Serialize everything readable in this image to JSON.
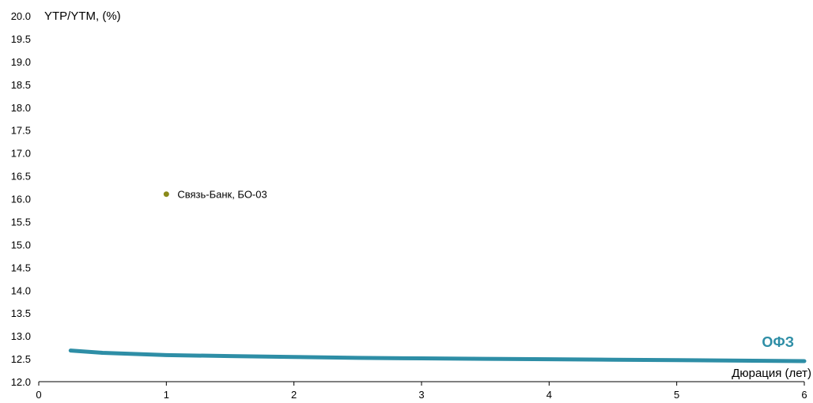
{
  "chart_data": {
    "type": "scatter",
    "title": "",
    "ylabel": "YTP/YTM, (%)",
    "xlabel": "Дюрация (лет)",
    "xlim": [
      0,
      6
    ],
    "ylim": [
      12.0,
      20.0
    ],
    "x_ticks": [
      "0",
      "1",
      "2",
      "3",
      "4",
      "5",
      "6"
    ],
    "y_ticks": [
      "12.0",
      "12.5",
      "13.0",
      "13.5",
      "14.0",
      "14.5",
      "15.0",
      "15.5",
      "16.0",
      "16.5",
      "17.0",
      "17.5",
      "18.0",
      "18.5",
      "19.0",
      "19.5",
      "20.0"
    ],
    "grid": false,
    "series": [
      {
        "name": "ОФЗ",
        "kind": "line",
        "color": "#2E8EA6",
        "points": [
          [
            0.25,
            12.68
          ],
          [
            0.5,
            12.63
          ],
          [
            1.0,
            12.58
          ],
          [
            1.5,
            12.56
          ],
          [
            2.0,
            12.54
          ],
          [
            2.5,
            12.52
          ],
          [
            3.0,
            12.51
          ],
          [
            3.5,
            12.5
          ],
          [
            4.0,
            12.49
          ],
          [
            4.5,
            12.48
          ],
          [
            5.0,
            12.47
          ],
          [
            5.5,
            12.46
          ],
          [
            6.0,
            12.45
          ]
        ]
      },
      {
        "name": "Связь-Банк, БО-03",
        "kind": "point",
        "color": "#8A8A1A",
        "points": [
          [
            1.0,
            16.1
          ]
        ]
      }
    ]
  }
}
